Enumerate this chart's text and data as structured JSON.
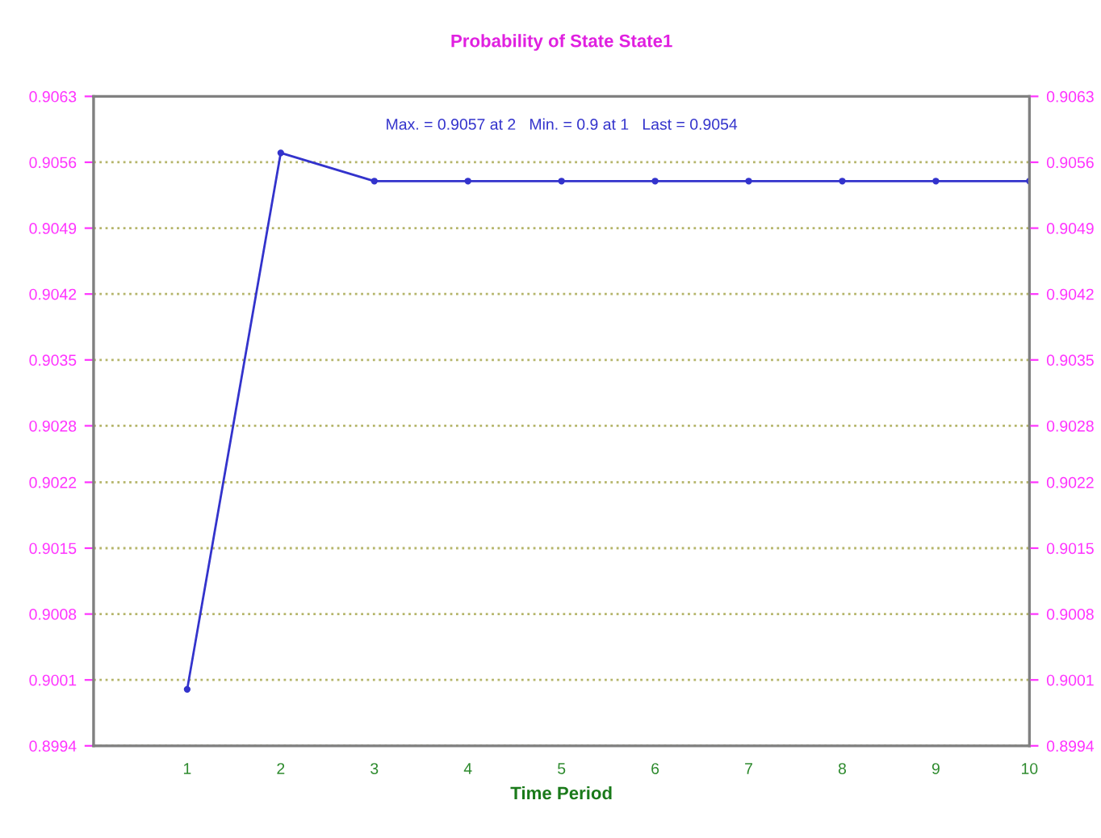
{
  "chart_data": {
    "type": "line",
    "title": "Probability of State State1",
    "xlabel": "Time Period",
    "annotations": [
      "Max. = 0.9057 at 2   Min. = 0.9 at 1   Last = 0.9054"
    ],
    "x": [
      1,
      2,
      3,
      4,
      5,
      6,
      7,
      8,
      9,
      10
    ],
    "series": [
      {
        "color": "#3333cc",
        "values": [
          0.9,
          0.9057,
          0.9054,
          0.9054,
          0.9054,
          0.9054,
          0.9054,
          0.9054,
          0.9054,
          0.9054
        ]
      }
    ],
    "xlim": [
      0,
      10
    ],
    "xticks": [
      1,
      2,
      3,
      4,
      5,
      6,
      7,
      8,
      9,
      10
    ],
    "ylim": [
      0.8994,
      0.9063
    ],
    "yticks": [
      0.8994,
      0.9001,
      0.9008,
      0.9015,
      0.9022,
      0.9028,
      0.9035,
      0.9042,
      0.9049,
      0.9056,
      0.9063
    ],
    "y2lim": [
      0.8994,
      0.9063
    ],
    "y2ticks": [
      0.8994,
      0.9001,
      0.9008,
      0.9015,
      0.9022,
      0.9028,
      0.9035,
      0.9042,
      0.9049,
      0.9056,
      0.9063
    ],
    "grid": "y",
    "marker": "circle",
    "line_style": "solid",
    "legend": false
  }
}
